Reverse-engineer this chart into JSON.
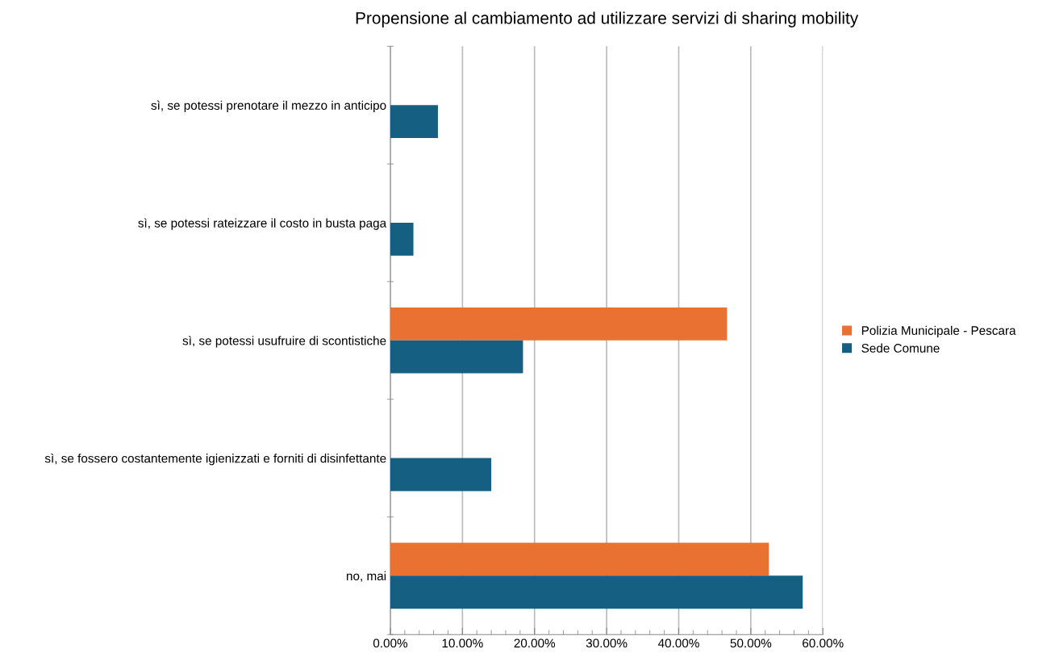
{
  "chart_data": {
    "type": "bar",
    "orientation": "horizontal",
    "title": "Propensione al cambiamento ad utilizzare servizi di sharing mobility",
    "categories": [
      "sì, se potessi prenotare il mezzo in anticipo",
      "sì, se potessi rateizzare il costo in busta paga",
      "sì, se potessi usufruire di scontistiche",
      "sì, se fossero costantemente igienizzati e forniti di disinfettante",
      "no, mai"
    ],
    "series": [
      {
        "name": "Polizia Municipale - Pescara",
        "color": "#e97132",
        "values": [
          null,
          null,
          46.7,
          null,
          52.5
        ]
      },
      {
        "name": "Sede Comune",
        "color": "#156082",
        "values": [
          6.6,
          3.2,
          18.4,
          14.0,
          57.2
        ]
      }
    ],
    "xlim": [
      0,
      60
    ],
    "xticks": [
      {
        "value": 0,
        "label": "0.00%"
      },
      {
        "value": 10,
        "label": "10.00%"
      },
      {
        "value": 20,
        "label": "20.00%"
      },
      {
        "value": 30,
        "label": "30.00%"
      },
      {
        "value": 40,
        "label": "40.00%"
      },
      {
        "value": 50,
        "label": "50.00%"
      },
      {
        "value": 60,
        "label": "60.00%"
      }
    ],
    "grid": "x",
    "legend": "right"
  }
}
